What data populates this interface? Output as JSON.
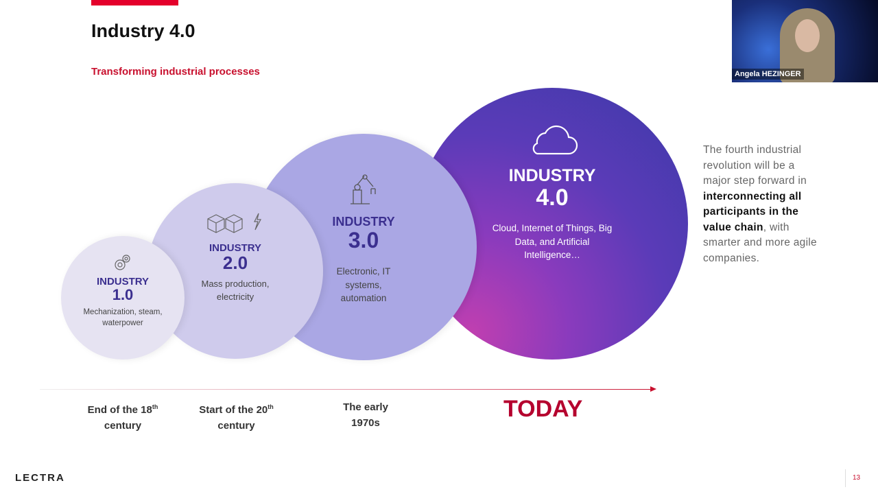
{
  "slide": {
    "title": "Industry 4.0",
    "subtitle": "Transforming industrial processes",
    "circles": [
      {
        "label": "INDUSTRY",
        "version": "1.0",
        "desc": "Mechanization, steam, waterpower",
        "icon": "gears-icon"
      },
      {
        "label": "INDUSTRY",
        "version": "2.0",
        "desc": "Mass production, electricity",
        "icon": "boxes-lightning-icon"
      },
      {
        "label": "INDUSTRY",
        "version": "3.0",
        "desc": "Electronic, IT systems, automation",
        "icon": "robot-arm-icon"
      },
      {
        "label": "INDUSTRY",
        "version": "4.0",
        "desc": "Cloud, Internet of Things, Big Data, and Artificial Intelligence…",
        "icon": "cloud-icon"
      }
    ],
    "timeline": [
      {
        "text": "End of the 18",
        "sup": "th",
        "text2": "century"
      },
      {
        "text": "Start of the 20",
        "sup": "th",
        "text2": "century"
      },
      {
        "text": "The early",
        "sup": "",
        "text2": "1970s"
      },
      {
        "text": "TODAY"
      }
    ],
    "side_text": {
      "p1": "The fourth industrial revolution will be  a major step forward  in",
      "bold": "interconnecting all participants in the value chain",
      "p2": ", with smarter and more agile companies."
    },
    "logo": "LECTRA",
    "page_number": "13"
  },
  "video": {
    "participant_name": "Angela HEZINGER"
  }
}
